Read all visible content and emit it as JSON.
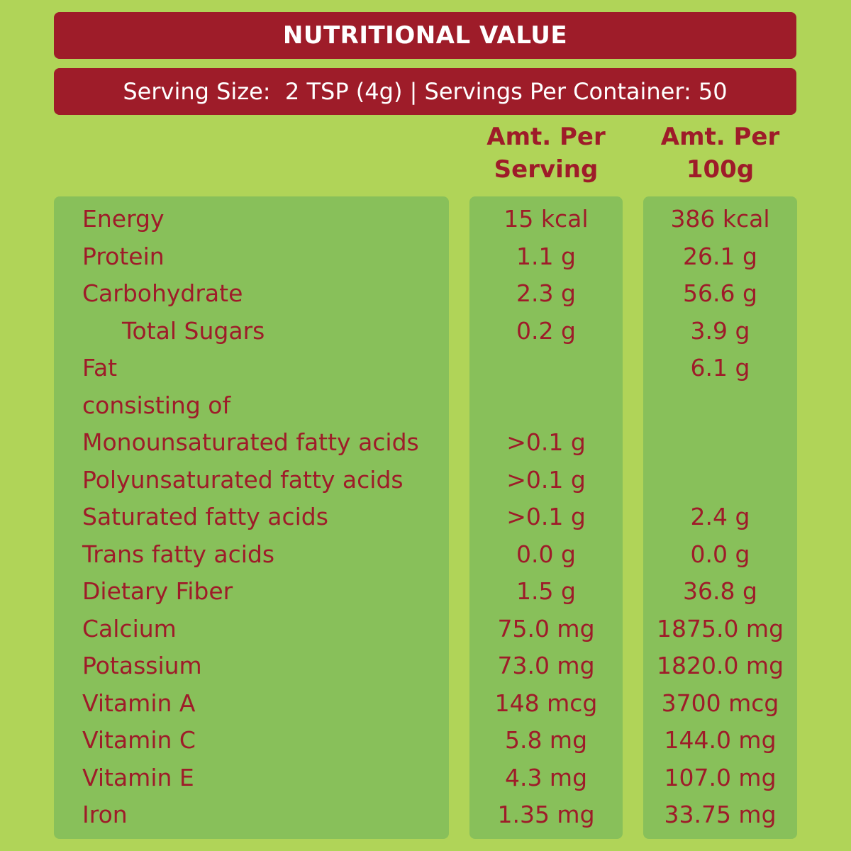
{
  "header": {
    "title": "NUTRITIONAL VALUE",
    "serving_line": "Serving Size:  2 TSP (4g) | Servings Per Container: 50"
  },
  "columns": {
    "per_serving": [
      "Amt. Per",
      "Serving"
    ],
    "per_100g": [
      "Amt. Per",
      "100g"
    ]
  },
  "rows": [
    {
      "name": "Energy",
      "serving": "15 kcal",
      "per100g": "386 kcal"
    },
    {
      "name": "Protein",
      "serving": "1.1 g",
      "per100g": "26.1 g"
    },
    {
      "name": "Carbohydrate",
      "serving": "2.3 g",
      "per100g": "56.6 g"
    },
    {
      "name": "Total Sugars",
      "serving": "0.2 g",
      "per100g": "3.9 g"
    },
    {
      "name": "Fat",
      "serving": "",
      "per100g": "6.1 g"
    },
    {
      "name": "consisting of",
      "serving": "",
      "per100g": ""
    },
    {
      "name": "Monounsaturated fatty acids",
      "serving": ">0.1 g",
      "per100g": ""
    },
    {
      "name": "Polyunsaturated fatty acids",
      "serving": ">0.1 g",
      "per100g": ""
    },
    {
      "name": "Saturated fatty acids",
      "serving": ">0.1 g",
      "per100g": "2.4 g"
    },
    {
      "name": "Trans fatty acids",
      "serving": "0.0 g",
      "per100g": "0.0 g"
    },
    {
      "name": "Dietary Fiber",
      "serving": "1.5 g",
      "per100g": "36.8 g"
    },
    {
      "name": "Calcium",
      "serving": "75.0 mg",
      "per100g": "1875.0 mg"
    },
    {
      "name": "Potassium",
      "serving": "73.0 mg",
      "per100g": "1820.0 mg"
    },
    {
      "name": "Vitamin A",
      "serving": "148 mcg",
      "per100g": "3700 mcg"
    },
    {
      "name": "Vitamin C",
      "serving": "5.8 mg",
      "per100g": "144.0 mg"
    },
    {
      "name": "Vitamin E",
      "serving": "4.3 mg",
      "per100g": "107.0 mg"
    },
    {
      "name": "Iron",
      "serving": "1.35 mg",
      "per100g": "33.75 mg"
    }
  ],
  "colors": {
    "background": "#b0d458",
    "banner": "#9e1c29",
    "panel": "#88c05a",
    "text": "#9e1c29"
  }
}
